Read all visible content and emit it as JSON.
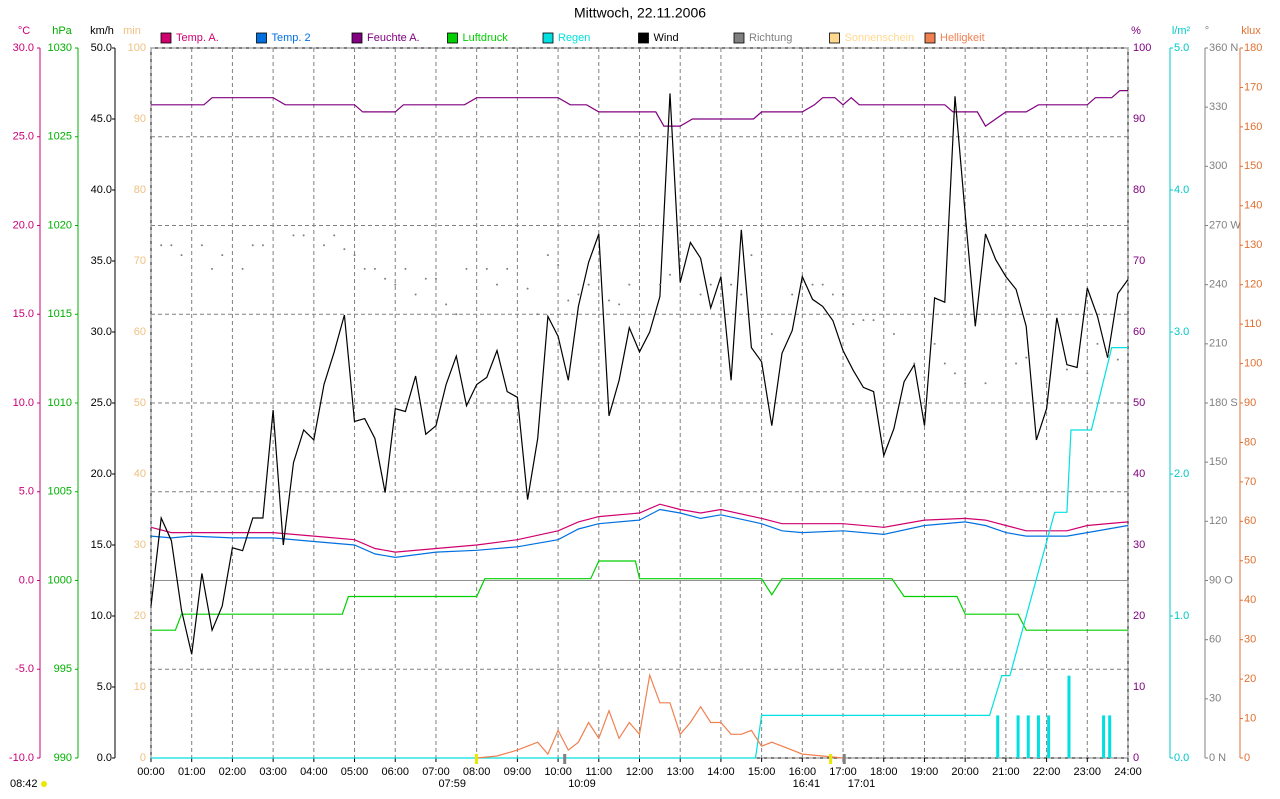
{
  "chart_data": {
    "type": "line",
    "title": "Mittwoch, 22.11.2006",
    "footer": "08:42",
    "grid": true,
    "xlim": [
      0,
      24
    ],
    "xticks": [
      {
        "value": 0,
        "label": "00:00"
      },
      {
        "value": 1,
        "label": "01:00"
      },
      {
        "value": 2,
        "label": "02:00"
      },
      {
        "value": 3,
        "label": "03:00"
      },
      {
        "value": 4,
        "label": "04:00"
      },
      {
        "value": 5,
        "label": "05:00"
      },
      {
        "value": 6,
        "label": "06:00"
      },
      {
        "value": 7,
        "label": "07:00"
      },
      {
        "value": 8,
        "label": "08:00"
      },
      {
        "value": 9,
        "label": "09:00"
      },
      {
        "value": 10,
        "label": "10:00"
      },
      {
        "value": 11,
        "label": "11:00"
      },
      {
        "value": 12,
        "label": "12:00"
      },
      {
        "value": 13,
        "label": "13:00"
      },
      {
        "value": 14,
        "label": "14:00"
      },
      {
        "value": 15,
        "label": "15:00"
      },
      {
        "value": 16,
        "label": "16:00"
      },
      {
        "value": 17,
        "label": "17:00"
      },
      {
        "value": 18,
        "label": "18:00"
      },
      {
        "value": 19,
        "label": "19:00"
      },
      {
        "value": 20,
        "label": "20:00"
      },
      {
        "value": 21,
        "label": "21:00"
      },
      {
        "value": 22,
        "label": "22:00"
      },
      {
        "value": 23,
        "label": "23:00"
      },
      {
        "value": 24,
        "label": "24:00"
      }
    ],
    "events": [
      {
        "label": "07:59",
        "x": 7.983,
        "color": "#e8e800"
      },
      {
        "label": "10:09",
        "x": 10.15,
        "color": "#808080"
      },
      {
        "label": "16:41",
        "x": 16.683,
        "color": "#e8e800"
      },
      {
        "label": "17:01",
        "x": 17.017,
        "color": "#808080"
      }
    ],
    "axes": [
      {
        "label": "°C",
        "color": "#cc0077",
        "ylim": [
          -10,
          30
        ],
        "yticks": [
          {
            "value": -10,
            "label": "-10.0"
          },
          {
            "value": -5,
            "label": "-5.0"
          },
          {
            "value": 0,
            "label": "0.0"
          },
          {
            "value": 5,
            "label": "5.0"
          },
          {
            "value": 10,
            "label": "10.0"
          },
          {
            "value": 15,
            "label": "15.0"
          },
          {
            "value": 20,
            "label": "20.0"
          },
          {
            "value": 25,
            "label": "25.0"
          },
          {
            "value": 30,
            "label": "30.0"
          }
        ]
      },
      {
        "label": "hPa",
        "color": "#00b000",
        "ylim": [
          990,
          1030
        ],
        "yticks": [
          990,
          995,
          1000,
          1005,
          1010,
          1015,
          1020,
          1025,
          1030
        ]
      },
      {
        "label": "km/h",
        "color": "#000000",
        "ylim": [
          0,
          50
        ],
        "yticks": [
          {
            "value": 0,
            "label": "0.0"
          },
          {
            "value": 5,
            "label": "5.0"
          },
          {
            "value": 10,
            "label": "10.0"
          },
          {
            "value": 15,
            "label": "15.0"
          },
          {
            "value": 20,
            "label": "20.0"
          },
          {
            "value": 25,
            "label": "25.0"
          },
          {
            "value": 30,
            "label": "30.0"
          },
          {
            "value": 35,
            "label": "35.0"
          },
          {
            "value": 40,
            "label": "40.0"
          },
          {
            "value": 45,
            "label": "45.0"
          },
          {
            "value": 50,
            "label": "50.0"
          }
        ]
      },
      {
        "label": "min",
        "color": "#f0c080",
        "ylim": [
          0,
          100
        ],
        "yticks": [
          0,
          10,
          20,
          30,
          40,
          50,
          60,
          70,
          80,
          90,
          100
        ]
      },
      {
        "label": "%",
        "color": "#800080",
        "ylim": [
          0,
          100
        ],
        "yticks": [
          0,
          10,
          20,
          30,
          40,
          50,
          60,
          70,
          80,
          90,
          100
        ]
      },
      {
        "label": "l/m²",
        "color": "#00c8c8",
        "ylim": [
          0,
          5
        ],
        "yticks": [
          {
            "value": 0,
            "label": "0.0"
          },
          {
            "value": 1,
            "label": "1.0"
          },
          {
            "value": 2,
            "label": "2.0"
          },
          {
            "value": 3,
            "label": "3.0"
          },
          {
            "value": 4,
            "label": "4.0"
          },
          {
            "value": 5,
            "label": "5.0"
          }
        ]
      },
      {
        "label": "°",
        "color": "#808080",
        "ylim": [
          0,
          360
        ],
        "yticks": [
          {
            "value": 0,
            "label": "0 N"
          },
          30,
          60,
          {
            "value": 90,
            "label": "90 O"
          },
          120,
          150,
          {
            "value": 180,
            "label": "180 S"
          },
          210,
          240,
          {
            "value": 270,
            "label": "270 W"
          },
          300,
          330,
          {
            "value": 360,
            "label": "360 N"
          }
        ]
      },
      {
        "label": "klux",
        "color": "#e07030",
        "ylim": [
          0,
          180
        ],
        "yticks": [
          0,
          10,
          20,
          30,
          40,
          50,
          60,
          70,
          80,
          90,
          100,
          110,
          120,
          130,
          140,
          150,
          160,
          170,
          180
        ]
      }
    ],
    "series": [
      {
        "name": "Temp. A.",
        "color": "#d0006f",
        "axis": "°C",
        "style": "line",
        "x": [
          0,
          0.5,
          1,
          2,
          3,
          4,
          5,
          5.5,
          6,
          7,
          8,
          9,
          10,
          10.5,
          11,
          12,
          12.5,
          13,
          13.5,
          14,
          15,
          15.5,
          16,
          17,
          18,
          19,
          20,
          20.5,
          21,
          21.5,
          22,
          22.5,
          23,
          24
        ],
        "values": [
          3.0,
          2.7,
          2.7,
          2.7,
          2.7,
          2.5,
          2.3,
          1.8,
          1.6,
          1.8,
          2.0,
          2.3,
          2.8,
          3.3,
          3.6,
          3.8,
          4.3,
          4.0,
          3.8,
          4.0,
          3.5,
          3.2,
          3.2,
          3.2,
          3.0,
          3.4,
          3.5,
          3.4,
          3.1,
          2.8,
          2.8,
          2.8,
          3.1,
          3.3
        ]
      },
      {
        "name": "Temp. 2",
        "color": "#0070e0",
        "axis": "°C",
        "style": "line",
        "x": [
          0,
          0.5,
          1,
          2,
          3,
          4,
          5,
          5.5,
          6,
          7,
          8,
          9,
          10,
          10.5,
          11,
          12,
          12.5,
          13,
          13.5,
          14,
          15,
          15.5,
          16,
          17,
          18,
          19,
          20,
          20.5,
          21,
          21.5,
          22,
          22.5,
          23,
          24
        ],
        "values": [
          2.5,
          2.4,
          2.5,
          2.4,
          2.4,
          2.2,
          2.0,
          1.5,
          1.3,
          1.6,
          1.7,
          1.9,
          2.3,
          2.9,
          3.2,
          3.4,
          4.0,
          3.8,
          3.5,
          3.7,
          3.2,
          2.8,
          2.7,
          2.8,
          2.6,
          3.1,
          3.3,
          3.1,
          2.7,
          2.5,
          2.5,
          2.5,
          2.7,
          3.1
        ]
      },
      {
        "name": "Feuchte A.",
        "color": "#800080",
        "axis": "%",
        "style": "line",
        "x": [
          0,
          1.3,
          1.5,
          3,
          3.3,
          5,
          5.2,
          6,
          6.2,
          7.7,
          8,
          10,
          10.3,
          10.7,
          11,
          12.4,
          12.6,
          13,
          13.3,
          14.8,
          15,
          16,
          16.3,
          16.5,
          16.8,
          17,
          17.2,
          17.4,
          19.5,
          19.7,
          20.3,
          20.5,
          21,
          21.5,
          21.8,
          23,
          23.2,
          23.6,
          23.8,
          24
        ],
        "values": [
          92,
          92,
          93,
          93,
          92,
          92,
          91,
          91,
          92,
          92,
          93,
          93,
          92,
          92,
          91,
          91,
          89,
          89,
          90,
          90,
          91,
          91,
          92,
          93,
          93,
          92,
          93,
          92,
          92,
          91,
          91,
          89,
          91,
          91,
          92,
          92,
          93,
          93,
          94,
          94
        ]
      },
      {
        "name": "Luftdruck",
        "color": "#00d000",
        "axis": "hPa",
        "style": "line",
        "x": [
          0,
          0.6,
          0.75,
          4.7,
          4.85,
          8.0,
          8.2,
          10.8,
          11.0,
          11.9,
          12.0,
          15.0,
          15.25,
          15.5,
          18.2,
          18.5,
          19.8,
          20.0,
          21.3,
          21.5,
          24
        ],
        "values": [
          997.2,
          997.2,
          998.1,
          998.1,
          999.1,
          999.1,
          1000.1,
          1000.1,
          1001.1,
          1001.1,
          1000.1,
          1000.1,
          999.2,
          1000.1,
          1000.1,
          999.1,
          999.1,
          998.1,
          998.1,
          997.2,
          997.2
        ]
      },
      {
        "name": "Regen",
        "color": "#00e0e0",
        "axis": "l/m²",
        "style": "line",
        "x": [
          0,
          14.85,
          15.0,
          20.6,
          20.9,
          21.1,
          22.2,
          22.5,
          22.6,
          23.1,
          23.6,
          24
        ],
        "values": [
          0,
          0,
          0.3,
          0.3,
          0.58,
          0.58,
          1.73,
          1.73,
          2.31,
          2.31,
          2.89,
          2.89
        ],
        "bars": {
          "x": [
            20.8,
            21.3,
            21.55,
            21.8,
            22.05,
            22.55,
            23.4,
            23.55
          ],
          "values": [
            0.3,
            0.3,
            0.3,
            0.3,
            0.3,
            0.58,
            0.3,
            0.3
          ]
        }
      },
      {
        "name": "Wind",
        "color": "#000000",
        "axis": "km/h",
        "style": "line",
        "x": [
          0,
          0.25,
          0.5,
          0.75,
          1,
          1.25,
          1.5,
          1.75,
          2,
          2.25,
          2.5,
          2.75,
          3,
          3.25,
          3.5,
          3.75,
          4,
          4.25,
          4.5,
          4.75,
          5,
          5.25,
          5.5,
          5.75,
          6,
          6.25,
          6.5,
          6.75,
          7,
          7.25,
          7.5,
          7.75,
          8,
          8.25,
          8.5,
          8.75,
          9,
          9.25,
          9.5,
          9.75,
          10,
          10.25,
          10.5,
          10.75,
          11,
          11.25,
          11.5,
          11.75,
          12,
          12.25,
          12.5,
          12.75,
          13,
          13.25,
          13.5,
          13.75,
          14,
          14.25,
          14.5,
          14.75,
          15,
          15.25,
          15.5,
          15.75,
          16,
          16.25,
          16.5,
          16.75,
          17,
          17.25,
          17.5,
          17.75,
          18,
          18.25,
          18.5,
          18.75,
          19,
          19.25,
          19.5,
          19.75,
          20,
          20.25,
          20.5,
          20.75,
          21,
          21.25,
          21.5,
          21.75,
          22,
          22.25,
          22.5,
          22.75,
          23,
          23.25,
          23.5,
          23.75,
          24
        ],
        "values": [
          10.7,
          16.9,
          15.3,
          10.4,
          7.3,
          13,
          9,
          10.7,
          14.8,
          14.6,
          16.9,
          16.9,
          24.5,
          15,
          20.8,
          23.1,
          22.4,
          26.3,
          28.6,
          31.2,
          23.7,
          23.9,
          22.5,
          18.7,
          24.6,
          24.4,
          26.9,
          22.8,
          23.4,
          26.3,
          28.3,
          24.8,
          26.3,
          26.8,
          28.7,
          25.8,
          25.4,
          18.2,
          22.5,
          31.1,
          29.7,
          26.6,
          31.8,
          34.9,
          36.9,
          24.1,
          26.6,
          30.3,
          28.6,
          30,
          32.5,
          46.8,
          33.5,
          36.3,
          35.2,
          31.7,
          33.9,
          26.6,
          37.2,
          28.9,
          27.9,
          23.4,
          28.5,
          30.1,
          33.9,
          32.3,
          31.8,
          30.8,
          28.7,
          27.3,
          26.1,
          25.8,
          21.3,
          23.2,
          26.5,
          27.7,
          23.4,
          32.4,
          32.1,
          46.6,
          38.3,
          30.4,
          36.9,
          35.1,
          33.9,
          33,
          30.4,
          22.4,
          24.6,
          31,
          27.7,
          27.5,
          33.1,
          31.1,
          28.2,
          32.7,
          33.7
        ]
      },
      {
        "name": "Richtung",
        "color": "#808080",
        "axis": "°",
        "style": "dots",
        "x": [
          0.25,
          0.5,
          0.75,
          1.25,
          1.5,
          1.75,
          2.25,
          2.5,
          2.75,
          3.5,
          3.75,
          4.25,
          4.5,
          4.75,
          5,
          5.25,
          5.5,
          5.75,
          6,
          6.25,
          6.5,
          6.75,
          7,
          7.25,
          7.5,
          7.75,
          8.25,
          8.5,
          8.75,
          9.25,
          9.5,
          9.75,
          10,
          10.25,
          10.5,
          10.75,
          11.25,
          11.5,
          11.75,
          12.5,
          12.75,
          13.5,
          13.75,
          14.25,
          14.5,
          14.75,
          15.25,
          15.75,
          16.25,
          16.5,
          16.75,
          17,
          17.25,
          17.5,
          17.75,
          18.25,
          18.75,
          19,
          19.25,
          19.5,
          19.75,
          20,
          20.5,
          21.25,
          21.5,
          22,
          22.5,
          23,
          23.25,
          23.5,
          23.75,
          24
        ],
        "values": [
          260,
          260,
          255,
          260,
          248,
          255,
          248,
          260,
          260,
          265,
          265,
          260,
          265,
          258,
          255,
          248,
          248,
          243,
          240,
          248,
          235,
          243,
          243,
          230,
          225,
          248,
          248,
          240,
          248,
          238,
          225,
          255,
          250,
          232,
          235,
          240,
          232,
          230,
          240,
          240,
          245,
          235,
          240,
          240,
          235,
          255,
          215,
          235,
          240,
          240,
          235,
          235,
          220,
          222,
          222,
          215,
          200,
          193,
          210,
          200,
          195,
          190,
          190,
          200,
          203,
          190,
          197,
          195,
          210,
          205,
          202,
          215
        ]
      },
      {
        "name": "Sonnenschein",
        "color": "#ffd890",
        "axis": "min",
        "style": "line",
        "x": [],
        "values": []
      },
      {
        "name": "Helligkeit",
        "color": "#f08050",
        "axis": "klux",
        "style": "line",
        "x": [
          8,
          8.5,
          9,
          9.5,
          9.75,
          10,
          10.25,
          10.5,
          10.75,
          11,
          11.25,
          11.5,
          11.75,
          12,
          12.25,
          12.5,
          12.75,
          13,
          13.25,
          13.5,
          13.75,
          14,
          14.25,
          14.5,
          14.75,
          15,
          15.25,
          15.75,
          16,
          16.5,
          17
        ],
        "values": [
          0,
          0.5,
          2,
          4,
          1,
          7,
          2,
          4,
          9,
          5,
          12,
          5,
          9,
          6,
          21,
          14,
          14,
          6,
          9,
          13,
          9,
          9,
          6,
          6,
          7,
          3,
          4,
          2,
          1,
          0.5,
          0
        ]
      }
    ]
  }
}
